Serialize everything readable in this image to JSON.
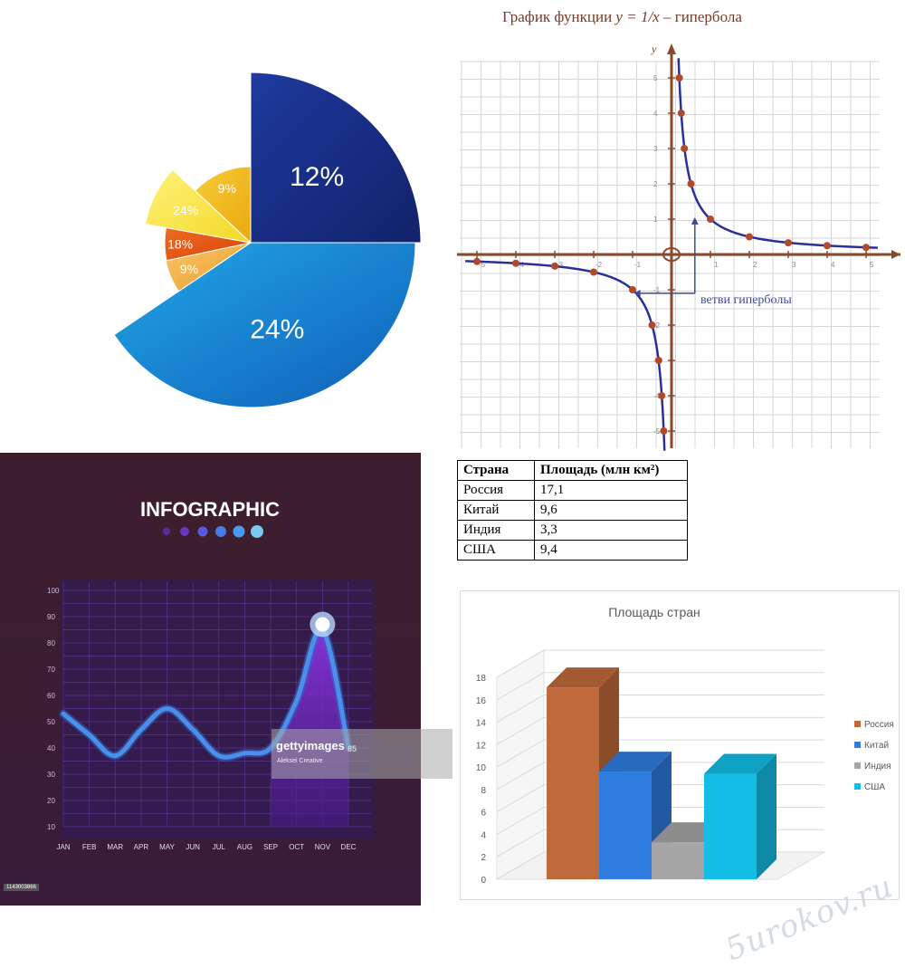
{
  "pie": {
    "chart_data": {
      "type": "pie",
      "title": "",
      "slices": [
        {
          "label": "12%",
          "value": 12,
          "color": "#1a2f8a"
        },
        {
          "label": "24%",
          "value": 24,
          "color": "#1d8fdc"
        },
        {
          "label": "9%",
          "value": 9,
          "color": "#f2ac3c"
        },
        {
          "label": "18%",
          "value": 18,
          "color": "#e85a14"
        },
        {
          "label": "24%",
          "value": 24,
          "color": "#f6e84a"
        },
        {
          "label": "9%",
          "value": 9,
          "color": "#f2c020"
        }
      ]
    }
  },
  "hyperbola": {
    "title_prefix": "График функции ",
    "title_formula": "y = 1/x",
    "title_suffix": " – гипербола",
    "annotation": "ветви гиперболы",
    "y_axis_label": "y",
    "chart_data": {
      "type": "line",
      "function": "y = 1/x",
      "xlim": [
        -5,
        5
      ],
      "ylim": [
        -5,
        5
      ],
      "grid": true,
      "x_ticks": [
        "-5",
        "-4",
        "-3",
        "-2",
        "-1",
        "1",
        "2",
        "3",
        "4",
        "5"
      ],
      "y_ticks": [
        "5",
        "4",
        "3",
        "2",
        "1",
        "-1",
        "-2",
        "-3",
        "-4",
        "-5"
      ],
      "points": [
        [
          -5,
          -0.2
        ],
        [
          -4,
          -0.25
        ],
        [
          -3,
          -0.33
        ],
        [
          -2,
          -0.5
        ],
        [
          -1,
          -1
        ],
        [
          -0.5,
          -2
        ],
        [
          -0.33,
          -3
        ],
        [
          -0.25,
          -4
        ],
        [
          -0.2,
          -5
        ],
        [
          0.2,
          5
        ],
        [
          0.25,
          4
        ],
        [
          0.33,
          3
        ],
        [
          0.5,
          2
        ],
        [
          1,
          1
        ],
        [
          2,
          0.5
        ],
        [
          3,
          0.33
        ],
        [
          4,
          0.25
        ],
        [
          5,
          0.2
        ]
      ],
      "line_color": "#2a2f9a",
      "point_color": "#b04a2a"
    }
  },
  "infographic": {
    "title": "INFOGRAPHIC",
    "peak_label": "85",
    "watermark_brand": "gettyimages",
    "watermark_credit": "Aleksei Creative",
    "watermark_id": "1143003866",
    "chart_data": {
      "type": "line",
      "categories": [
        "JAN",
        "FEB",
        "MAR",
        "APR",
        "MAY",
        "JUN",
        "JUL",
        "AUG",
        "SEP",
        "OCT",
        "NOV",
        "DEC"
      ],
      "values": [
        53,
        45,
        37,
        47,
        55,
        47,
        37,
        38,
        40,
        58,
        85,
        40
      ],
      "ylim": [
        10,
        100
      ],
      "y_ticks": [
        "100",
        "90",
        "80",
        "70",
        "60",
        "50",
        "40",
        "30",
        "20",
        "10"
      ],
      "grid": true,
      "line_color": "#4a8fe8",
      "area_color": "#7b2fd0"
    }
  },
  "table": {
    "headers": [
      "Страна",
      "Площадь (млн км²)"
    ],
    "rows": [
      [
        "Россия",
        "17,1"
      ],
      [
        "Китай",
        "9,6"
      ],
      [
        "Индия",
        "3,3"
      ],
      [
        "США",
        "9,4"
      ]
    ]
  },
  "bar3d": {
    "chart_data": {
      "type": "bar",
      "title": "Площадь стран",
      "categories": [
        "Россия",
        "Китай",
        "Индия",
        "США"
      ],
      "values": [
        17.1,
        9.6,
        3.3,
        9.4
      ],
      "ylim": [
        0,
        18
      ],
      "y_ticks": [
        "18",
        "16",
        "14",
        "12",
        "10",
        "8",
        "6",
        "4",
        "2",
        "0"
      ],
      "legend": "right",
      "colors": [
        "#c0693a",
        "#2f7de0",
        "#a6a6a6",
        "#12bde6"
      ]
    }
  },
  "watermark": "5urokov.ru"
}
